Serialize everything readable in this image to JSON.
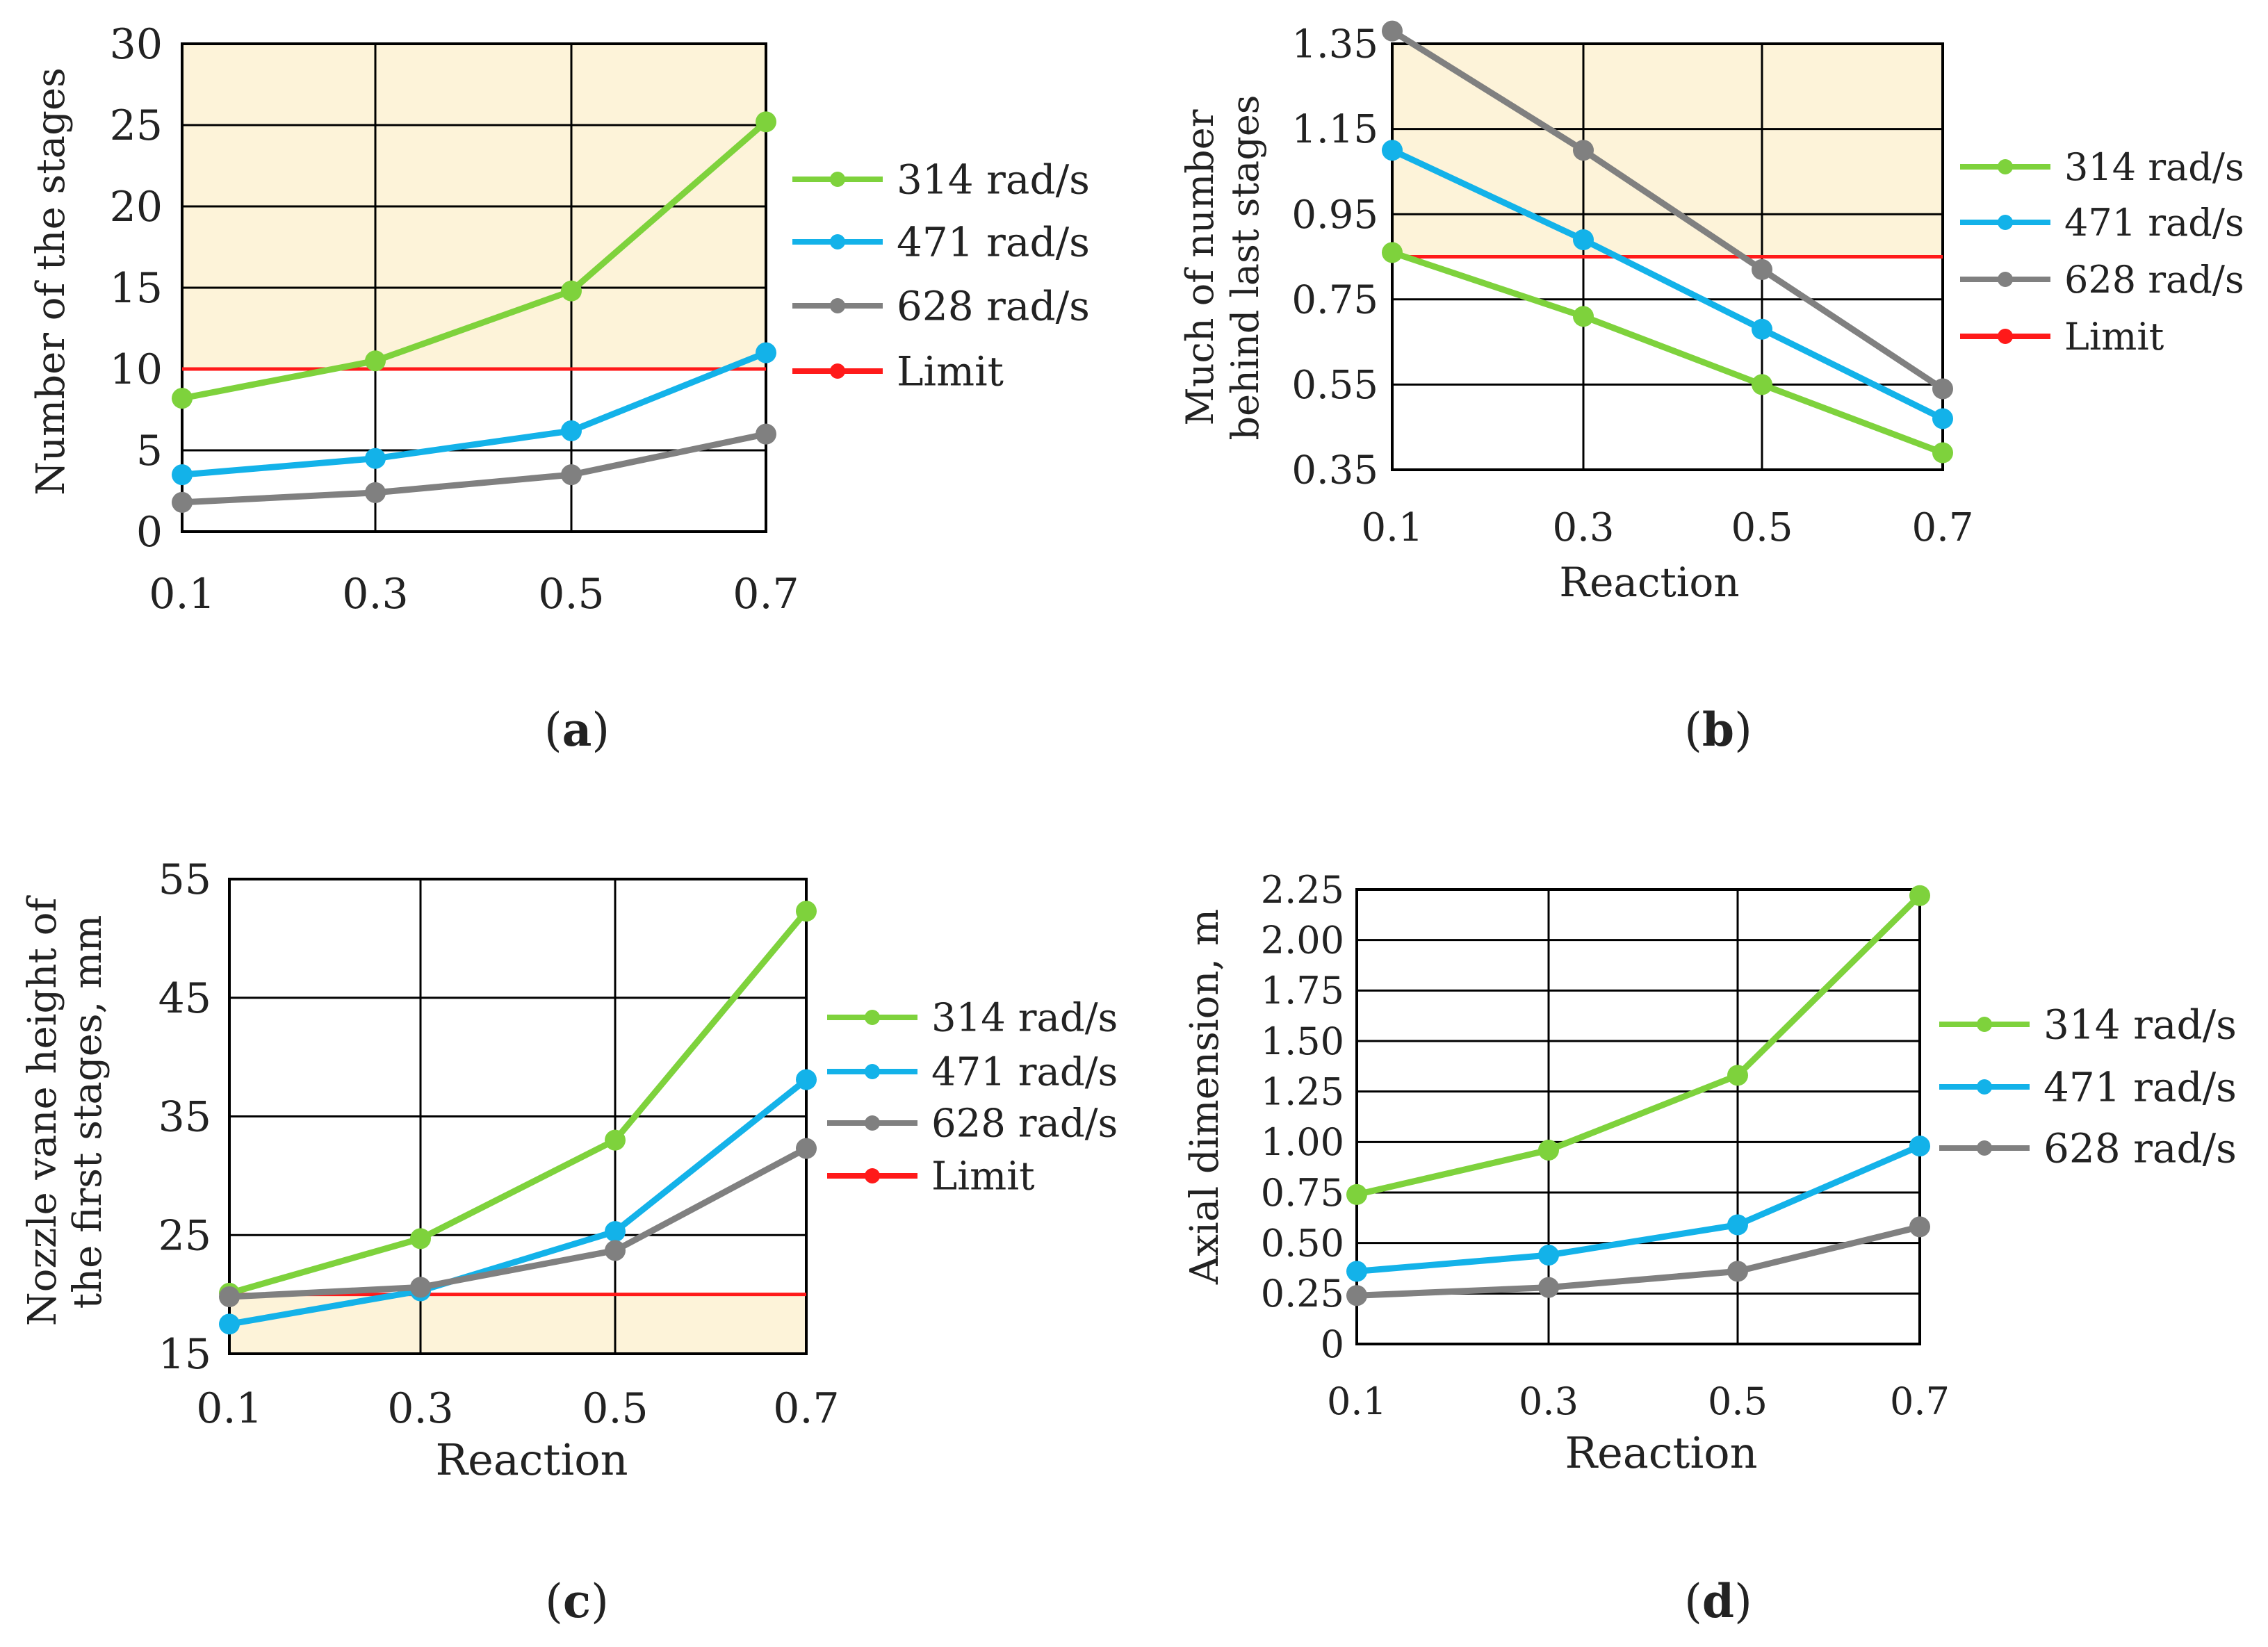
{
  "colors": {
    "series_314": "#7ed23c",
    "series_471": "#13b2e9",
    "series_628": "#808080",
    "limit": "#ff1a1a",
    "shade": "#fdf3d9",
    "grid": "#000000"
  },
  "chart_data": [
    {
      "type": "line",
      "panel_label": "a",
      "xlabel": "",
      "ylabel": "Number of the stages",
      "x": [
        0.1,
        0.3,
        0.5,
        0.7
      ],
      "x_ticks": [
        "0.1",
        "0.3",
        "0.5",
        "0.7"
      ],
      "y_ticks": [
        "0",
        "5",
        "10",
        "15",
        "20",
        "25",
        "30"
      ],
      "ylim": [
        0,
        30
      ],
      "grid": true,
      "legend_position": "right",
      "shaded_region": "above-limit",
      "series": [
        {
          "name": "314 rad/s",
          "key": "series_314",
          "values": [
            8.2,
            10.5,
            14.8,
            25.2
          ]
        },
        {
          "name": "471 rad/s",
          "key": "series_471",
          "values": [
            3.5,
            4.5,
            6.2,
            11.0
          ]
        },
        {
          "name": "628 rad/s",
          "key": "series_628",
          "values": [
            1.8,
            2.4,
            3.5,
            6.0
          ]
        }
      ],
      "limit": {
        "name": "Limit",
        "value": 10
      }
    },
    {
      "type": "line",
      "panel_label": "b",
      "xlabel": "Reaction",
      "ylabel": "Much of number behind last stages",
      "x": [
        0.1,
        0.3,
        0.5,
        0.7
      ],
      "x_ticks": [
        "0.1",
        "0.3",
        "0.5",
        "0.7"
      ],
      "y_ticks": [
        "0.35",
        "0.55",
        "0.75",
        "0.95",
        "1.15",
        "1.35"
      ],
      "ylim": [
        0.35,
        1.35
      ],
      "grid": true,
      "legend_position": "right",
      "shaded_region": "above-limit",
      "series": [
        {
          "name": "314 rad/s",
          "key": "series_314",
          "values": [
            0.86,
            0.71,
            0.55,
            0.39
          ]
        },
        {
          "name": "471 rad/s",
          "key": "series_471",
          "values": [
            1.1,
            0.89,
            0.68,
            0.47
          ]
        },
        {
          "name": "628 rad/s",
          "key": "series_628",
          "values": [
            1.38,
            1.1,
            0.82,
            0.54
          ]
        }
      ],
      "limit": {
        "name": "Limit",
        "value": 0.85
      }
    },
    {
      "type": "line",
      "panel_label": "c",
      "xlabel": "Reaction",
      "ylabel": "Nozzle vane height of the first stages, mm",
      "x": [
        0.1,
        0.3,
        0.5,
        0.7
      ],
      "x_ticks": [
        "0.1",
        "0.3",
        "0.5",
        "0.7"
      ],
      "y_ticks": [
        "15",
        "25",
        "35",
        "45",
        "55"
      ],
      "ylim": [
        15,
        55
      ],
      "grid": true,
      "legend_position": "right",
      "shaded_region": "below-limit",
      "series": [
        {
          "name": "314 rad/s",
          "key": "series_314",
          "values": [
            20.1,
            24.7,
            33.0,
            52.3
          ]
        },
        {
          "name": "471 rad/s",
          "key": "series_471",
          "values": [
            17.5,
            20.3,
            25.3,
            38.1
          ]
        },
        {
          "name": "628 rad/s",
          "key": "series_628",
          "values": [
            19.8,
            20.6,
            23.7,
            32.3
          ]
        }
      ],
      "limit": {
        "name": "Limit",
        "value": 20
      }
    },
    {
      "type": "line",
      "panel_label": "d",
      "xlabel": "Reaction",
      "ylabel": "Axial dimension, m",
      "x": [
        0.1,
        0.3,
        0.5,
        0.7
      ],
      "x_ticks": [
        "0.1",
        "0.3",
        "0.5",
        "0.7"
      ],
      "y_ticks": [
        "0",
        "0.25",
        "0.50",
        "0.75",
        "1.00",
        "1.25",
        "1.50",
        "1.75",
        "2.00",
        "2.25"
      ],
      "ylim": [
        0,
        2.25
      ],
      "grid": true,
      "legend_position": "right",
      "shaded_region": "none",
      "series": [
        {
          "name": "314 rad/s",
          "key": "series_314",
          "values": [
            0.74,
            0.96,
            1.33,
            2.22
          ]
        },
        {
          "name": "471 rad/s",
          "key": "series_471",
          "values": [
            0.36,
            0.44,
            0.59,
            0.98
          ]
        },
        {
          "name": "628 rad/s",
          "key": "series_628",
          "values": [
            0.24,
            0.28,
            0.36,
            0.58
          ]
        }
      ],
      "limit": null
    }
  ]
}
